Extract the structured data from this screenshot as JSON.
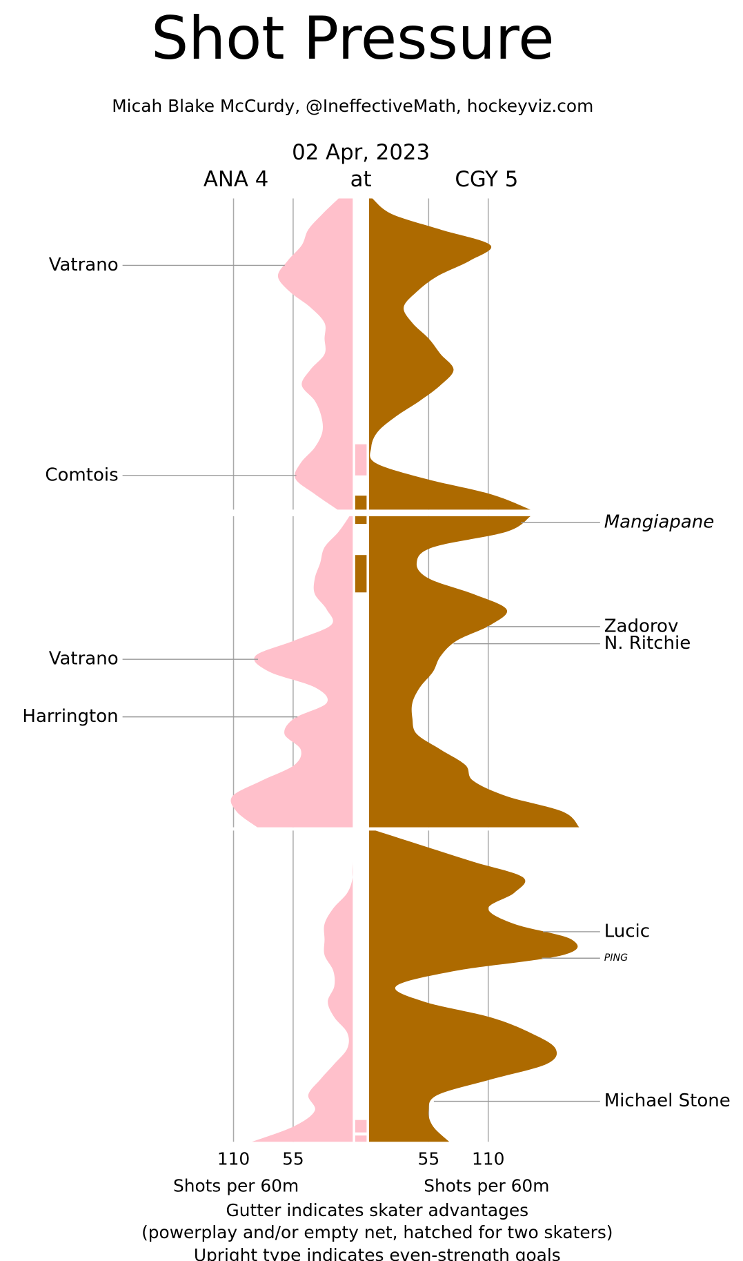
{
  "chart_data": {
    "type": "shot-pressure",
    "title": "Shot Pressure",
    "subtitle": "Micah Blake McCurdy, @IneffectiveMath, hockeyviz.com",
    "date": "02 Apr, 2023",
    "at": "at",
    "teams": [
      {
        "label": "ANA 4",
        "color": "#ffc0cb"
      },
      {
        "label": "CGY 5",
        "color": "#ad6a00"
      }
    ],
    "xlim": [
      0,
      200
    ],
    "xticks": [
      55,
      110
    ],
    "xlabel": "Shots per 60m",
    "grid": true,
    "notes": [
      "Gutter indicates skater advantages",
      "(powerplay and/or empty net, hatched for two skaters)",
      "Upright type indicates even-strength goals"
    ],
    "minutes": [
      0,
      1,
      2,
      3,
      4,
      5,
      6,
      7,
      8,
      9,
      10,
      11,
      12,
      13,
      14,
      15,
      16,
      17,
      18,
      19,
      20
    ],
    "periods": [
      {
        "values": [
          [
            13,
            28,
            41,
            47,
            60,
            69,
            58,
            39,
            26,
            26,
            26,
            39,
            47,
            35,
            29,
            28,
            35,
            48,
            53,
            35,
            14
          ],
          [
            3,
            21,
            66,
            112,
            93,
            63,
            44,
            32,
            40,
            55,
            66,
            78,
            66,
            47,
            25,
            8,
            2,
            6,
            51,
            112,
            149
          ]
        ]
      },
      {
        "values": [
          [
            3,
            13,
            26,
            30,
            35,
            35,
            24,
            20,
            54,
            90,
            77,
            35,
            24,
            54,
            63,
            48,
            54,
            84,
            111,
            107,
            88
          ],
          [
            149,
            127,
            59,
            44,
            55,
            96,
            127,
            112,
            81,
            66,
            59,
            47,
            40,
            40,
            44,
            66,
            89,
            96,
            127,
            179,
            194
          ]
        ]
      },
      {
        "values": [
          [
            0,
            0,
            0,
            0,
            5,
            18,
            26,
            26,
            26,
            18,
            17,
            23,
            17,
            5,
            5,
            17,
            30,
            41,
            35,
            54,
            93
          ],
          [
            6,
            51,
            96,
            142,
            134,
            110,
            134,
            187,
            179,
            81,
            25,
            51,
            112,
            149,
            172,
            164,
            112,
            63,
            55,
            59,
            74
          ]
        ]
      }
    ],
    "goals": [
      {
        "team": 0,
        "period": 0,
        "minute": 4.3,
        "scorer": "Vatrano",
        "style": "upright"
      },
      {
        "team": 0,
        "period": 0,
        "minute": 17.8,
        "scorer": "Comtois",
        "style": "upright"
      },
      {
        "team": 0,
        "period": 1,
        "minute": 9.2,
        "scorer": "Vatrano",
        "style": "upright"
      },
      {
        "team": 0,
        "period": 1,
        "minute": 12.9,
        "scorer": "Harrington",
        "style": "upright"
      },
      {
        "team": 1,
        "period": 1,
        "minute": 0.4,
        "scorer": "Mangiapane",
        "style": "italic"
      },
      {
        "team": 1,
        "period": 1,
        "minute": 7.1,
        "scorer": "Zadorov",
        "style": "upright"
      },
      {
        "team": 1,
        "period": 1,
        "minute": 8.2,
        "scorer": "N. Ritchie",
        "style": "upright"
      },
      {
        "team": 1,
        "period": 2,
        "minute": 6.5,
        "scorer": "Lucic",
        "style": "upright"
      },
      {
        "team": 1,
        "period": 2,
        "minute": 8.2,
        "scorer": "PING",
        "style": "small-italic"
      },
      {
        "team": 1,
        "period": 2,
        "minute": 17.4,
        "scorer": "Michael Stone",
        "style": "upright"
      }
    ],
    "gutter": [
      {
        "team": 0,
        "period": 0,
        "start": 15.8,
        "end": 17.8
      },
      {
        "team": 1,
        "period": 0,
        "start": 19.1,
        "end": 20
      },
      {
        "team": 1,
        "period": 1,
        "start": 0,
        "end": 0.5
      },
      {
        "team": 1,
        "period": 1,
        "start": 2.5,
        "end": 4.9
      },
      {
        "team": 0,
        "period": 2,
        "start": 18.6,
        "end": 19.4
      },
      {
        "team": 0,
        "period": 2,
        "start": 19.6,
        "end": 20
      }
    ]
  }
}
